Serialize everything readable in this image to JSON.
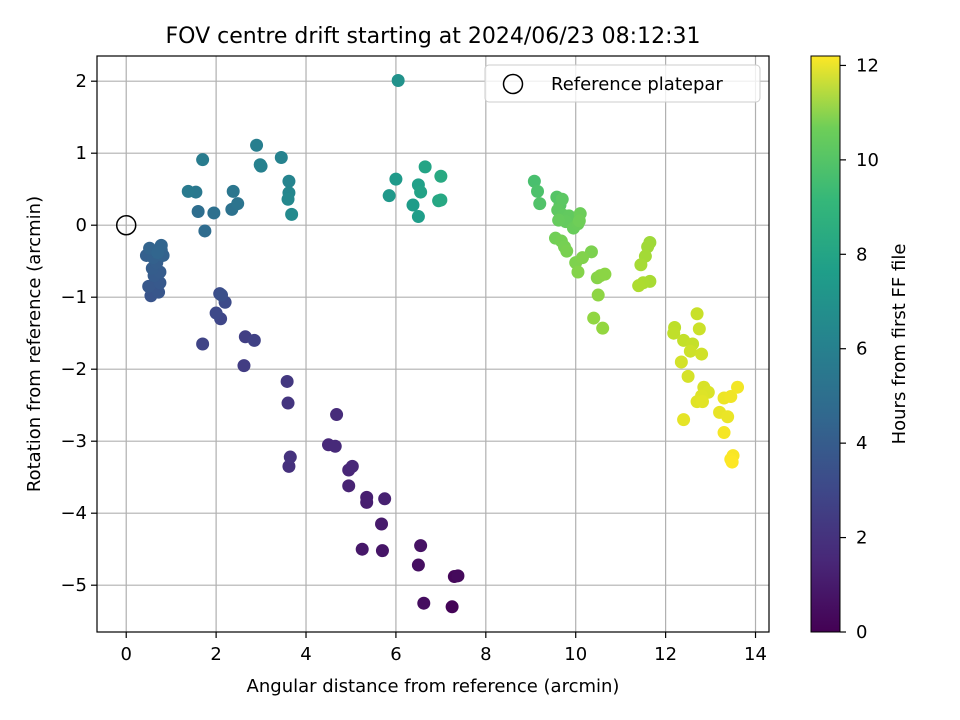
{
  "chart_data": {
    "type": "scatter",
    "title": "FOV centre drift starting at 2024/06/23 08:12:31",
    "xlabel": "Angular distance from reference (arcmin)",
    "ylabel": "Rotation from reference (arcmin)",
    "xlim": [
      -0.65,
      14.3
    ],
    "ylim": [
      -5.65,
      2.35
    ],
    "xticks": [
      0,
      2,
      4,
      6,
      8,
      10,
      12,
      14
    ],
    "yticks": [
      2,
      1,
      0,
      -1,
      -2,
      -3,
      -4,
      -5
    ],
    "xtick_labels": [
      "0",
      "2",
      "4",
      "6",
      "8",
      "10",
      "12",
      "14"
    ],
    "ytick_labels": [
      "2",
      "1",
      "0",
      "−1",
      "−2",
      "−3",
      "−4",
      "−5"
    ],
    "grid": true,
    "colormap": "viridis",
    "colorbar": {
      "label": "Hours from first FF file",
      "range": [
        0,
        12.2
      ],
      "ticks": [
        0,
        2,
        4,
        6,
        8,
        10,
        12
      ],
      "tick_labels": [
        "0",
        "2",
        "4",
        "6",
        "8",
        "10",
        "12"
      ]
    },
    "legend": {
      "placement": "upper-right",
      "entries": [
        "Reference platepar"
      ]
    },
    "reference_point": {
      "x": 0,
      "y": 0
    },
    "points": [
      {
        "x": 7.25,
        "y": -5.3,
        "t": 0.1
      },
      {
        "x": 7.3,
        "y": -4.88,
        "t": 0.2
      },
      {
        "x": 7.38,
        "y": -4.87,
        "t": 0.3
      },
      {
        "x": 6.62,
        "y": -5.25,
        "t": 0.4
      },
      {
        "x": 6.5,
        "y": -4.72,
        "t": 0.5
      },
      {
        "x": 6.55,
        "y": -4.45,
        "t": 0.6
      },
      {
        "x": 5.7,
        "y": -4.52,
        "t": 0.7
      },
      {
        "x": 5.25,
        "y": -4.5,
        "t": 0.8
      },
      {
        "x": 5.68,
        "y": -4.15,
        "t": 0.9
      },
      {
        "x": 5.35,
        "y": -3.85,
        "t": 1.0
      },
      {
        "x": 5.35,
        "y": -3.78,
        "t": 1.05
      },
      {
        "x": 5.75,
        "y": -3.8,
        "t": 1.1
      },
      {
        "x": 4.95,
        "y": -3.62,
        "t": 1.2
      },
      {
        "x": 4.95,
        "y": -3.4,
        "t": 1.3
      },
      {
        "x": 5.03,
        "y": -3.35,
        "t": 1.35
      },
      {
        "x": 4.5,
        "y": -3.05,
        "t": 1.4
      },
      {
        "x": 4.65,
        "y": -3.07,
        "t": 1.45
      },
      {
        "x": 4.68,
        "y": -2.63,
        "t": 1.5
      },
      {
        "x": 3.62,
        "y": -3.35,
        "t": 1.7
      },
      {
        "x": 3.65,
        "y": -3.22,
        "t": 1.75
      },
      {
        "x": 3.6,
        "y": -2.47,
        "t": 1.9
      },
      {
        "x": 3.58,
        "y": -2.17,
        "t": 2.0
      },
      {
        "x": 2.62,
        "y": -1.95,
        "t": 2.2
      },
      {
        "x": 2.65,
        "y": -1.55,
        "t": 2.3
      },
      {
        "x": 2.85,
        "y": -1.6,
        "t": 2.4
      },
      {
        "x": 1.7,
        "y": -1.65,
        "t": 2.5
      },
      {
        "x": 2.1,
        "y": -1.3,
        "t": 2.6
      },
      {
        "x": 2.0,
        "y": -1.22,
        "t": 2.7
      },
      {
        "x": 2.2,
        "y": -1.07,
        "t": 2.8
      },
      {
        "x": 2.08,
        "y": -0.95,
        "t": 2.9
      },
      {
        "x": 2.12,
        "y": -0.97,
        "t": 3.0
      },
      {
        "x": 0.55,
        "y": -0.98,
        "t": 3.2
      },
      {
        "x": 0.72,
        "y": -0.93,
        "t": 3.3
      },
      {
        "x": 0.5,
        "y": -0.85,
        "t": 3.35
      },
      {
        "x": 0.75,
        "y": -0.8,
        "t": 3.4
      },
      {
        "x": 0.62,
        "y": -0.7,
        "t": 3.5
      },
      {
        "x": 0.75,
        "y": -0.65,
        "t": 3.55
      },
      {
        "x": 0.58,
        "y": -0.6,
        "t": 3.6
      },
      {
        "x": 0.68,
        "y": -0.52,
        "t": 3.65
      },
      {
        "x": 0.45,
        "y": -0.42,
        "t": 3.7
      },
      {
        "x": 0.6,
        "y": -0.45,
        "t": 3.75
      },
      {
        "x": 0.82,
        "y": -0.42,
        "t": 3.8
      },
      {
        "x": 0.78,
        "y": -0.35,
        "t": 3.85
      },
      {
        "x": 0.52,
        "y": -0.32,
        "t": 3.9
      },
      {
        "x": 0.78,
        "y": -0.28,
        "t": 3.95
      },
      {
        "x": 0.7,
        "y": -0.38,
        "t": 4.0
      },
      {
        "x": 1.75,
        "y": -0.08,
        "t": 4.3
      },
      {
        "x": 1.6,
        "y": 0.19,
        "t": 4.4
      },
      {
        "x": 1.95,
        "y": 0.17,
        "t": 4.5
      },
      {
        "x": 2.35,
        "y": 0.22,
        "t": 4.6
      },
      {
        "x": 2.48,
        "y": 0.3,
        "t": 4.7
      },
      {
        "x": 2.38,
        "y": 0.47,
        "t": 4.8
      },
      {
        "x": 1.55,
        "y": 0.46,
        "t": 4.9
      },
      {
        "x": 1.38,
        "y": 0.47,
        "t": 5.0
      },
      {
        "x": 1.7,
        "y": 0.91,
        "t": 5.1
      },
      {
        "x": 2.9,
        "y": 1.11,
        "t": 5.2
      },
      {
        "x": 3.0,
        "y": 0.82,
        "t": 5.3
      },
      {
        "x": 2.98,
        "y": 0.84,
        "t": 5.35
      },
      {
        "x": 3.45,
        "y": 0.94,
        "t": 5.4
      },
      {
        "x": 3.62,
        "y": 0.61,
        "t": 5.5
      },
      {
        "x": 3.62,
        "y": 0.45,
        "t": 5.6
      },
      {
        "x": 3.6,
        "y": 0.36,
        "t": 5.7
      },
      {
        "x": 3.68,
        "y": 0.15,
        "t": 5.8
      },
      {
        "x": 6.05,
        "y": 2.01,
        "t": 6.2
      },
      {
        "x": 5.85,
        "y": 0.41,
        "t": 6.5
      },
      {
        "x": 6.0,
        "y": 0.64,
        "t": 6.6
      },
      {
        "x": 6.38,
        "y": 0.28,
        "t": 6.7
      },
      {
        "x": 6.5,
        "y": 0.12,
        "t": 6.8
      },
      {
        "x": 6.5,
        "y": 0.56,
        "t": 6.9
      },
      {
        "x": 6.55,
        "y": 0.46,
        "t": 7.0
      },
      {
        "x": 6.65,
        "y": 0.81,
        "t": 7.1
      },
      {
        "x": 6.95,
        "y": 0.34,
        "t": 7.2
      },
      {
        "x": 7.0,
        "y": 0.35,
        "t": 7.3
      },
      {
        "x": 7.0,
        "y": 0.68,
        "t": 7.4
      },
      {
        "x": 9.08,
        "y": 0.61,
        "t": 8.6
      },
      {
        "x": 9.15,
        "y": 0.47,
        "t": 8.7
      },
      {
        "x": 9.2,
        "y": 0.3,
        "t": 8.8
      },
      {
        "x": 9.58,
        "y": 0.39,
        "t": 8.9
      },
      {
        "x": 9.65,
        "y": 0.28,
        "t": 9.0
      },
      {
        "x": 9.7,
        "y": 0.36,
        "t": 9.05
      },
      {
        "x": 9.6,
        "y": 0.21,
        "t": 9.1
      },
      {
        "x": 9.72,
        "y": 0.14,
        "t": 9.15
      },
      {
        "x": 9.85,
        "y": 0.13,
        "t": 9.2
      },
      {
        "x": 9.78,
        "y": 0.05,
        "t": 9.25
      },
      {
        "x": 9.62,
        "y": 0.07,
        "t": 9.3
      },
      {
        "x": 9.95,
        "y": -0.04,
        "t": 9.35
      },
      {
        "x": 10.05,
        "y": 0.02,
        "t": 9.4
      },
      {
        "x": 10.1,
        "y": 0.16,
        "t": 9.45
      },
      {
        "x": 10.08,
        "y": 0.06,
        "t": 9.5
      },
      {
        "x": 9.55,
        "y": -0.18,
        "t": 9.55
      },
      {
        "x": 9.68,
        "y": -0.22,
        "t": 9.6
      },
      {
        "x": 9.75,
        "y": -0.3,
        "t": 9.65
      },
      {
        "x": 9.8,
        "y": -0.36,
        "t": 9.7
      },
      {
        "x": 10.35,
        "y": -0.37,
        "t": 9.75
      },
      {
        "x": 10.0,
        "y": -0.52,
        "t": 9.8
      },
      {
        "x": 10.15,
        "y": -0.45,
        "t": 9.85
      },
      {
        "x": 10.05,
        "y": -0.65,
        "t": 9.9
      },
      {
        "x": 10.48,
        "y": -0.73,
        "t": 9.95
      },
      {
        "x": 10.55,
        "y": -0.7,
        "t": 10.0
      },
      {
        "x": 10.65,
        "y": -0.68,
        "t": 10.05
      },
      {
        "x": 10.5,
        "y": -0.97,
        "t": 10.1
      },
      {
        "x": 10.4,
        "y": -1.29,
        "t": 10.15
      },
      {
        "x": 10.6,
        "y": -1.43,
        "t": 10.2
      },
      {
        "x": 11.65,
        "y": -0.24,
        "t": 10.4
      },
      {
        "x": 11.6,
        "y": -0.3,
        "t": 10.45
      },
      {
        "x": 11.55,
        "y": -0.43,
        "t": 10.5
      },
      {
        "x": 11.45,
        "y": -0.55,
        "t": 10.55
      },
      {
        "x": 11.65,
        "y": -0.78,
        "t": 10.6
      },
      {
        "x": 11.5,
        "y": -0.8,
        "t": 10.65
      },
      {
        "x": 11.4,
        "y": -0.84,
        "t": 10.7
      },
      {
        "x": 12.2,
        "y": -1.42,
        "t": 11.0
      },
      {
        "x": 12.18,
        "y": -1.5,
        "t": 11.05
      },
      {
        "x": 12.4,
        "y": -1.6,
        "t": 11.1
      },
      {
        "x": 12.6,
        "y": -1.65,
        "t": 11.15
      },
      {
        "x": 12.7,
        "y": -1.23,
        "t": 11.2
      },
      {
        "x": 12.75,
        "y": -1.44,
        "t": 11.25
      },
      {
        "x": 12.55,
        "y": -1.75,
        "t": 11.3
      },
      {
        "x": 12.8,
        "y": -1.79,
        "t": 11.35
      },
      {
        "x": 12.35,
        "y": -1.9,
        "t": 11.4
      },
      {
        "x": 12.5,
        "y": -2.1,
        "t": 11.45
      },
      {
        "x": 12.85,
        "y": -2.25,
        "t": 11.5
      },
      {
        "x": 12.95,
        "y": -2.32,
        "t": 11.55
      },
      {
        "x": 12.8,
        "y": -2.37,
        "t": 11.6
      },
      {
        "x": 12.7,
        "y": -2.45,
        "t": 11.65
      },
      {
        "x": 12.82,
        "y": -2.45,
        "t": 11.7
      },
      {
        "x": 12.4,
        "y": -2.7,
        "t": 11.75
      },
      {
        "x": 13.2,
        "y": -2.6,
        "t": 11.8
      },
      {
        "x": 13.38,
        "y": -2.66,
        "t": 11.85
      },
      {
        "x": 13.3,
        "y": -2.4,
        "t": 11.9
      },
      {
        "x": 13.45,
        "y": -2.38,
        "t": 11.95
      },
      {
        "x": 13.6,
        "y": -2.25,
        "t": 12.0
      },
      {
        "x": 13.3,
        "y": -2.88,
        "t": 12.05
      },
      {
        "x": 13.5,
        "y": -3.2,
        "t": 12.1
      },
      {
        "x": 13.45,
        "y": -3.25,
        "t": 12.15
      },
      {
        "x": 13.48,
        "y": -3.29,
        "t": 12.2
      }
    ]
  }
}
